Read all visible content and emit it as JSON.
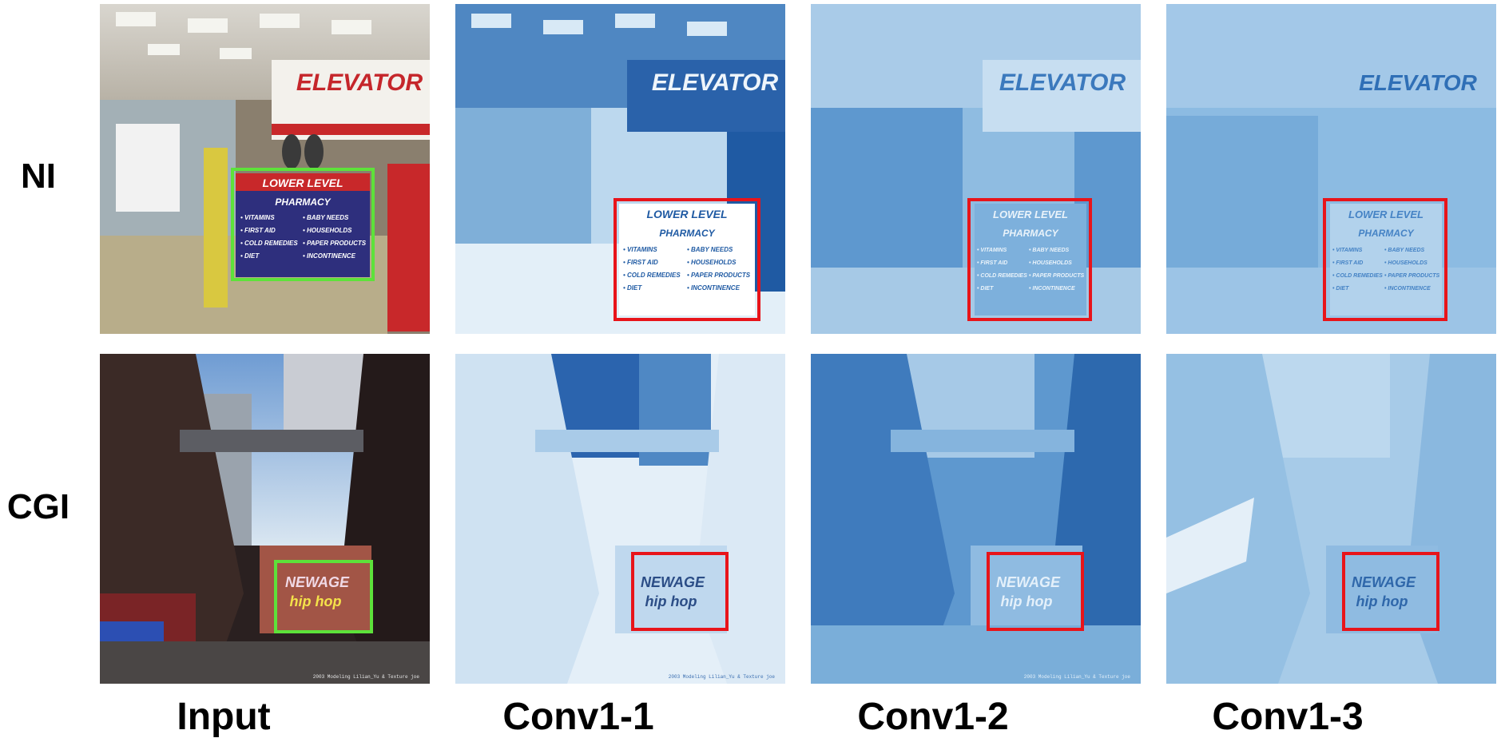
{
  "rows": [
    "NI",
    "CGI"
  ],
  "columns": [
    "Input",
    "Conv1-1",
    "Conv1-2",
    "Conv1-3"
  ],
  "ni_scene": {
    "elevator_sign": "ELEVATOR",
    "sign_header": "LOWER LEVEL",
    "sign_title": "PHARMACY",
    "sign_items_left": [
      "• VITAMINS",
      "• FIRST AID",
      "• COLD REMEDIES",
      "• DIET"
    ],
    "sign_items_right": [
      "• BABY NEEDS",
      "• HOUSEHOLDS",
      "• PAPER PRODUCTS",
      "• INCONTINENCE"
    ]
  },
  "cgi_scene": {
    "graffiti_line1": "NEWAGE",
    "graffiti_line2": "hip hop",
    "watermark": "2003 Modeling Lilian_Yu & Texture joe"
  },
  "colors": {
    "input_box": "#5de23a",
    "feature_box": "#e8141a"
  }
}
